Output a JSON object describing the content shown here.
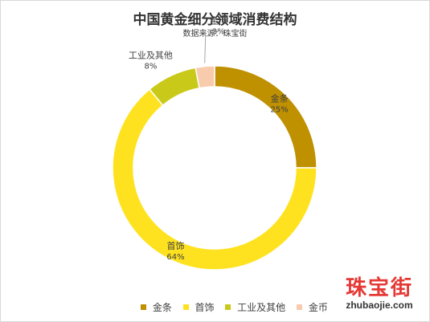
{
  "chart_data": {
    "type": "pie",
    "style": "doughnut",
    "title": "中国黄金细分领域消费结构",
    "subtitle": "数据来源：珠宝街",
    "series": [
      {
        "name": "金条",
        "value": 25,
        "label": "25%",
        "color": "#BF9000"
      },
      {
        "name": "首饰",
        "value": 64,
        "label": "64%",
        "color": "#FFE21F"
      },
      {
        "name": "工业及其他",
        "value": 8,
        "label": "8%",
        "color": "#C9C91A"
      },
      {
        "name": "金币",
        "value": 3,
        "label": "3%",
        "color": "#F8CBAD"
      }
    ],
    "legend_position": "bottom"
  },
  "watermark": {
    "brand_cn": "珠宝街",
    "brand_url": "zhubaojie.com"
  }
}
